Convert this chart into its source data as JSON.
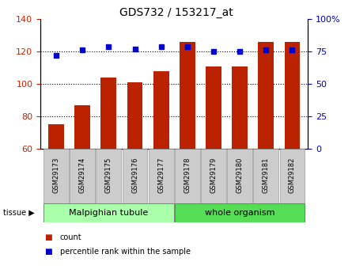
{
  "title": "GDS732 / 153217_at",
  "categories": [
    "GSM29173",
    "GSM29174",
    "GSM29175",
    "GSM29176",
    "GSM29177",
    "GSM29178",
    "GSM29179",
    "GSM29180",
    "GSM29181",
    "GSM29182"
  ],
  "counts": [
    75,
    87,
    104,
    101,
    108,
    126,
    111,
    111,
    126,
    126
  ],
  "percentiles": [
    72,
    76,
    79,
    77,
    79,
    79,
    75,
    75,
    76,
    76
  ],
  "ylim_left": [
    60,
    140
  ],
  "ylim_right": [
    0,
    100
  ],
  "yticks_left": [
    60,
    80,
    100,
    120,
    140
  ],
  "yticks_right": [
    0,
    25,
    50,
    75,
    100
  ],
  "ytick_labels_right": [
    "0",
    "25",
    "50",
    "75",
    "100%"
  ],
  "bar_color": "#bb2200",
  "dot_color": "#0000cc",
  "grid_lines": [
    80,
    100,
    120
  ],
  "grid_color": "#000000",
  "tissue_groups": [
    {
      "label": "Malpighian tubule",
      "start": 0,
      "end": 5,
      "color": "#aaffaa"
    },
    {
      "label": "whole organism",
      "start": 5,
      "end": 10,
      "color": "#55dd55"
    }
  ],
  "legend_items": [
    {
      "label": "count",
      "color": "#bb2200"
    },
    {
      "label": "percentile rank within the sample",
      "color": "#0000cc"
    }
  ],
  "tissue_label": "tissue",
  "background_color": "#ffffff",
  "ticklabel_color_left": "#cc2200",
  "ticklabel_color_right": "#0000cc",
  "label_box_color": "#cccccc",
  "label_box_edge": "#999999"
}
